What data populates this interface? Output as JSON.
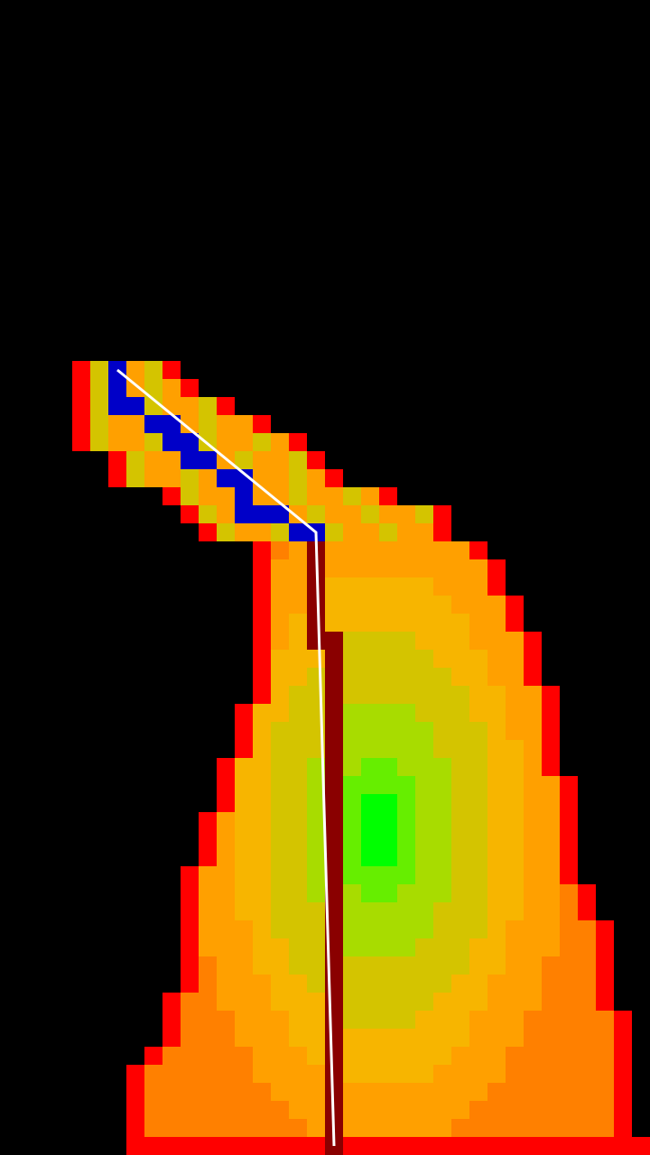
{
  "scene": {
    "background": "#000000",
    "palette": {
      "edge": "#ff0000",
      "warm": "#ff8000",
      "orange": "#ffa000",
      "amber": "#f7b500",
      "yellow": "#d4c400",
      "lime": "#a8dc00",
      "green": "#66ee00",
      "peak": "#00ff00",
      "trail": "#0000c8",
      "wall": "#8a0000",
      "line": "#ffffff"
    }
  }
}
